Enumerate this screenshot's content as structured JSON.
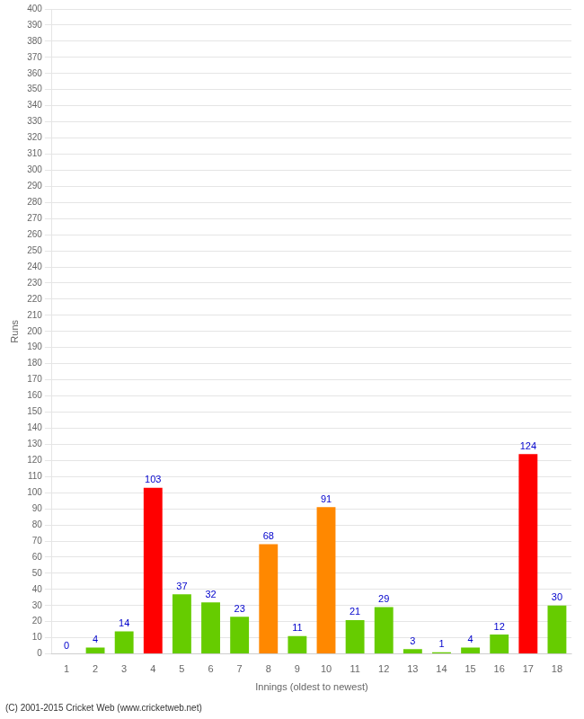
{
  "chart_data": {
    "type": "bar",
    "categories": [
      "1",
      "2",
      "3",
      "4",
      "5",
      "6",
      "7",
      "8",
      "9",
      "10",
      "11",
      "12",
      "13",
      "14",
      "15",
      "16",
      "17",
      "18"
    ],
    "values": [
      0,
      4,
      14,
      103,
      37,
      32,
      23,
      68,
      11,
      91,
      21,
      29,
      3,
      1,
      4,
      12,
      124,
      30
    ],
    "colors": [
      "#66cc00",
      "#66cc00",
      "#66cc00",
      "#ff0000",
      "#66cc00",
      "#66cc00",
      "#66cc00",
      "#ff8800",
      "#66cc00",
      "#ff8800",
      "#66cc00",
      "#66cc00",
      "#66cc00",
      "#66cc00",
      "#66cc00",
      "#66cc00",
      "#ff0000",
      "#66cc00"
    ],
    "x_label": "Innings (oldest to newest)",
    "y_label": "Runs",
    "ylim": [
      0,
      400
    ],
    "yticks": [
      0,
      10,
      20,
      30,
      40,
      50,
      60,
      70,
      80,
      90,
      100,
      110,
      120,
      130,
      140,
      150,
      160,
      170,
      180,
      190,
      200,
      210,
      220,
      230,
      240,
      250,
      260,
      270,
      280,
      290,
      300,
      310,
      320,
      330,
      340,
      350,
      360,
      370,
      380,
      390,
      400
    ],
    "grid": true,
    "data_labels": true,
    "annotations": [
      "(C) 2001-2015 Cricket Web (www.cricketweb.net)"
    ]
  }
}
